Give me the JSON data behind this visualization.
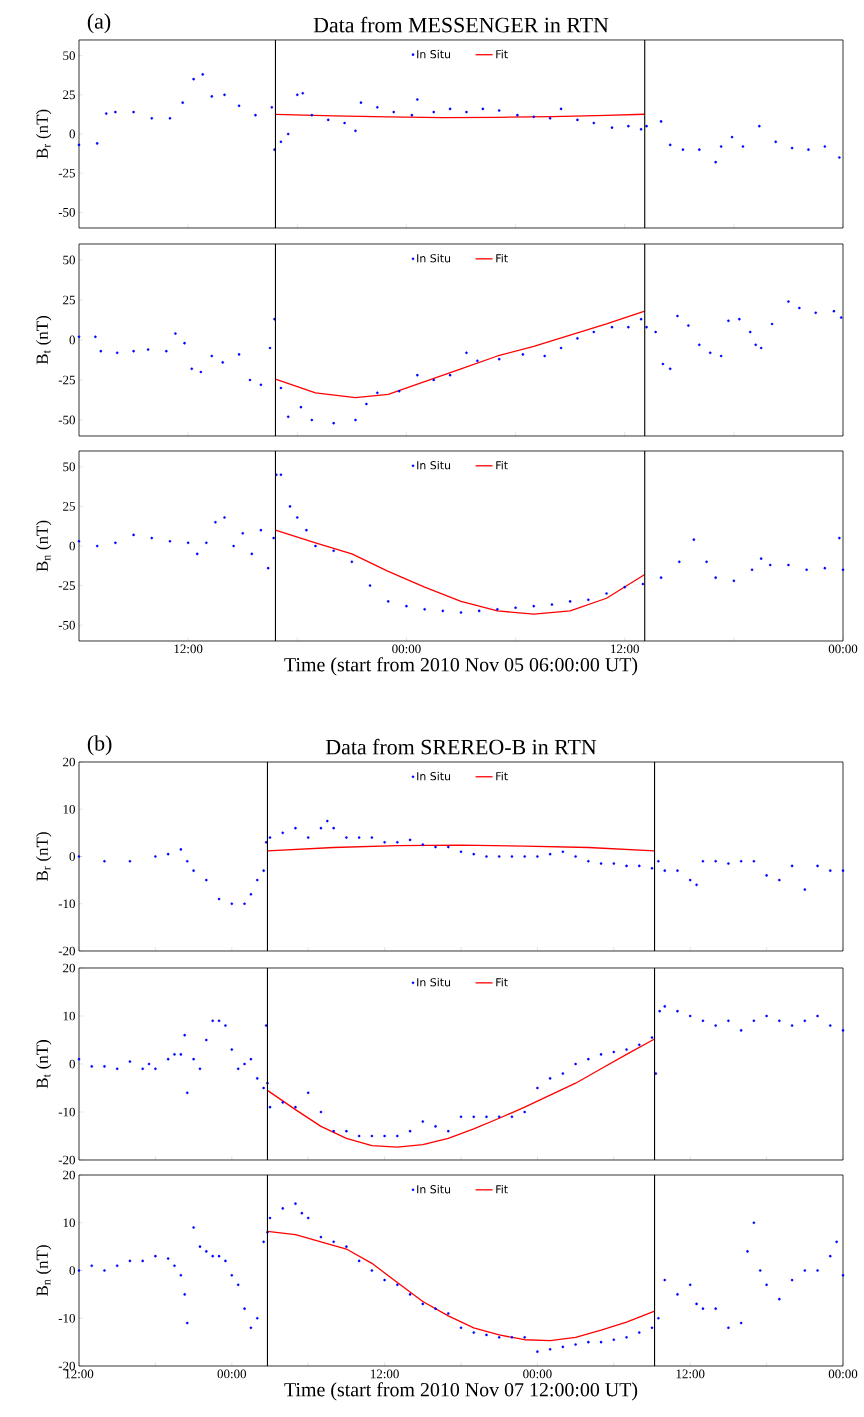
{
  "chart_data": [
    {
      "type": "scatter",
      "title": "Data from MESSENGER in RTN",
      "annotations": [
        "(a)"
      ],
      "ylabel": "B$_{r}$  (nT)",
      "xlim": [
        "2010-11-05T06:00",
        "2010-11-07T00:00"
      ],
      "ylim": [
        -60,
        60
      ],
      "yticks": [
        -50,
        -25,
        0,
        25,
        50
      ],
      "xticks": [
        {
          "value": "2010-11-05T12:00",
          "label": null
        },
        {
          "value": "2010-11-05T18:00",
          "label": null
        },
        {
          "value": "2010-11-06T00:00",
          "label": null
        },
        {
          "value": "2010-11-06T06:00",
          "label": null
        },
        {
          "value": "2010-11-06T12:00",
          "label": null
        },
        {
          "value": "2010-11-06T18:00",
          "label": null
        },
        {
          "value": "2010-11-07T00:00",
          "label": null
        }
      ],
      "tick_labels": "y",
      "legend": "top",
      "ref_lines": [
        {
          "axis": "x",
          "value": "2010-11-05T16:48",
          "color": "#000000"
        },
        {
          "axis": "x",
          "value": "2010-11-06T13:06",
          "color": "#000000"
        }
      ],
      "series": [
        {
          "name": "In Situ",
          "marker": "circle",
          "color": "#0000ff",
          "x": [
            "2010-11-05T06:00",
            "2010-11-05T07:00",
            "2010-11-05T07:30",
            "2010-11-05T08:00",
            "2010-11-05T09:00",
            "2010-11-05T10:00",
            "2010-11-05T11:00",
            "2010-11-05T11:42",
            "2010-11-05T12:18",
            "2010-11-05T12:48",
            "2010-11-05T13:18",
            "2010-11-05T14:00",
            "2010-11-05T14:48",
            "2010-11-05T15:42",
            "2010-11-05T16:36",
            "2010-11-05T16:45",
            "2010-11-05T17:06",
            "2010-11-05T17:30",
            "2010-11-05T18:00",
            "2010-11-05T18:18",
            "2010-11-05T18:48",
            "2010-11-05T19:42",
            "2010-11-05T20:36",
            "2010-11-05T21:12",
            "2010-11-05T21:30",
            "2010-11-05T22:24",
            "2010-11-05T23:18",
            "2010-11-06T00:18",
            "2010-11-06T00:36",
            "2010-11-06T01:30",
            "2010-11-06T02:24",
            "2010-11-06T03:18",
            "2010-11-06T04:12",
            "2010-11-06T05:06",
            "2010-11-06T06:06",
            "2010-11-06T07:00",
            "2010-11-06T07:54",
            "2010-11-06T08:30",
            "2010-11-06T09:24",
            "2010-11-06T10:18",
            "2010-11-06T11:18",
            "2010-11-06T12:12",
            "2010-11-06T12:54",
            "2010-11-06T13:12",
            "2010-11-06T14:00",
            "2010-11-06T14:30",
            "2010-11-06T15:12",
            "2010-11-06T16:06",
            "2010-11-06T17:00",
            "2010-11-06T17:18",
            "2010-11-06T17:54",
            "2010-11-06T18:30",
            "2010-11-06T19:24",
            "2010-11-06T20:18",
            "2010-11-06T21:12",
            "2010-11-06T22:06",
            "2010-11-06T23:00",
            "2010-11-06T23:48"
          ],
          "values": [
            -7,
            -6,
            13,
            14,
            14,
            10,
            10,
            20,
            35,
            38,
            24,
            25,
            18,
            12,
            17,
            -10,
            -5,
            0,
            25,
            26,
            12,
            9,
            7,
            2,
            20,
            17,
            14,
            12,
            22,
            14,
            16,
            14,
            16,
            15,
            12,
            11,
            10,
            16,
            9,
            7,
            4,
            5,
            3,
            5,
            8,
            -7,
            -10,
            -10,
            -18,
            -8,
            -2,
            -8,
            5,
            -5,
            -9,
            -10,
            -8,
            -15
          ]
        },
        {
          "name": "Fit",
          "type": "line",
          "marker": "none",
          "color": "#ff0000",
          "x": [
            "2010-11-05T16:48",
            "2010-11-05T20:00",
            "2010-11-05T23:00",
            "2010-11-06T02:00",
            "2010-11-06T05:00",
            "2010-11-06T08:00",
            "2010-11-06T11:00",
            "2010-11-06T13:06"
          ],
          "values": [
            12.5,
            11.6,
            10.9,
            10.5,
            10.6,
            11.1,
            11.9,
            12.6
          ]
        }
      ]
    },
    {
      "type": "scatter",
      "ylabel": "B$_{t}$  (nT)",
      "xlim": [
        "2010-11-05T06:00",
        "2010-11-07T00:00"
      ],
      "ylim": [
        -60,
        60
      ],
      "yticks": [
        -50,
        -25,
        0,
        25,
        50
      ],
      "xticks": [
        {
          "value": "2010-11-05T12:00",
          "label": null
        },
        {
          "value": "2010-11-05T18:00",
          "label": null
        },
        {
          "value": "2010-11-06T00:00",
          "label": null
        },
        {
          "value": "2010-11-06T06:00",
          "label": null
        },
        {
          "value": "2010-11-06T12:00",
          "label": null
        },
        {
          "value": "2010-11-06T18:00",
          "label": null
        },
        {
          "value": "2010-11-07T00:00",
          "label": null
        }
      ],
      "tick_labels": "y",
      "legend": "top",
      "ref_lines": [
        {
          "axis": "x",
          "value": "2010-11-05T16:48",
          "color": "#000000"
        },
        {
          "axis": "x",
          "value": "2010-11-06T13:06",
          "color": "#000000"
        }
      ],
      "series": [
        {
          "name": "In Situ",
          "marker": "circle",
          "color": "#0000ff",
          "x": [
            "2010-11-05T06:00",
            "2010-11-05T06:54",
            "2010-11-05T07:12",
            "2010-11-05T08:06",
            "2010-11-05T09:00",
            "2010-11-05T09:48",
            "2010-11-05T10:48",
            "2010-11-05T11:18",
            "2010-11-05T11:48",
            "2010-11-05T12:12",
            "2010-11-05T12:42",
            "2010-11-05T13:18",
            "2010-11-05T13:54",
            "2010-11-05T14:48",
            "2010-11-05T15:24",
            "2010-11-05T16:00",
            "2010-11-05T16:30",
            "2010-11-05T16:45",
            "2010-11-05T17:06",
            "2010-11-05T17:30",
            "2010-11-05T18:12",
            "2010-11-05T18:48",
            "2010-11-05T20:00",
            "2010-11-05T21:12",
            "2010-11-05T21:48",
            "2010-11-05T22:24",
            "2010-11-05T23:36",
            "2010-11-06T00:36",
            "2010-11-06T01:30",
            "2010-11-06T02:24",
            "2010-11-06T03:18",
            "2010-11-06T03:54",
            "2010-11-06T05:06",
            "2010-11-06T06:24",
            "2010-11-06T07:36",
            "2010-11-06T08:30",
            "2010-11-06T09:24",
            "2010-11-06T10:18",
            "2010-11-06T11:18",
            "2010-11-06T12:12",
            "2010-11-06T12:54",
            "2010-11-06T13:12",
            "2010-11-06T13:42",
            "2010-11-06T14:06",
            "2010-11-06T14:30",
            "2010-11-06T14:54",
            "2010-11-06T15:30",
            "2010-11-06T16:06",
            "2010-11-06T16:42",
            "2010-11-06T17:18",
            "2010-11-06T17:42",
            "2010-11-06T18:18",
            "2010-11-06T18:54",
            "2010-11-06T19:12",
            "2010-11-06T19:30",
            "2010-11-06T20:06",
            "2010-11-06T21:00",
            "2010-11-06T21:36",
            "2010-11-06T22:30",
            "2010-11-06T23:30",
            "2010-11-06T23:54"
          ],
          "values": [
            2,
            2,
            -7,
            -8,
            -7,
            -6,
            -7,
            4,
            -2,
            -18,
            -20,
            -10,
            -14,
            -9,
            -25,
            -28,
            -5,
            13,
            -30,
            -48,
            -42,
            -50,
            -52,
            -50,
            -40,
            -33,
            -32,
            -22,
            -25,
            -22,
            -8,
            -13,
            -12,
            -9,
            -10,
            -5,
            1,
            5,
            8,
            8,
            13,
            8,
            5,
            -15,
            -18,
            15,
            9,
            -3,
            -8,
            -10,
            12,
            13,
            5,
            -3,
            -5,
            10,
            24,
            20,
            17,
            18,
            14
          ]
        },
        {
          "name": "Fit",
          "type": "line",
          "marker": "none",
          "color": "#ff0000",
          "x": [
            "2010-11-05T16:48",
            "2010-11-05T19:00",
            "2010-11-05T21:12",
            "2010-11-05T23:00",
            "2010-11-06T01:00",
            "2010-11-06T03:00",
            "2010-11-06T05:00",
            "2010-11-06T07:00",
            "2010-11-06T09:00",
            "2010-11-06T11:00",
            "2010-11-06T13:06"
          ],
          "values": [
            -24.5,
            -33,
            -36,
            -34,
            -26,
            -18,
            -10,
            -4,
            3,
            10,
            18
          ]
        }
      ]
    },
    {
      "type": "scatter",
      "ylabel": "B$_{n}$  (nT)",
      "xlabel": "Time (start from 2010 Nov 05 06:00:00 UT)",
      "xlim": [
        "2010-11-05T06:00",
        "2010-11-07T00:00"
      ],
      "ylim": [
        -60,
        60
      ],
      "yticks": [
        -50,
        -25,
        0,
        25,
        50
      ],
      "xticks": [
        {
          "value": "2010-11-05T12:00",
          "label": "12:00"
        },
        {
          "value": "2010-11-05T18:00",
          "label": null
        },
        {
          "value": "2010-11-06T00:00",
          "label": "00:00"
        },
        {
          "value": "2010-11-06T06:00",
          "label": null
        },
        {
          "value": "2010-11-06T12:00",
          "label": "12:00"
        },
        {
          "value": "2010-11-06T18:00",
          "label": null
        },
        {
          "value": "2010-11-07T00:00",
          "label": "00:00"
        }
      ],
      "legend": "top",
      "ref_lines": [
        {
          "axis": "x",
          "value": "2010-11-05T16:48",
          "color": "#000000"
        },
        {
          "axis": "x",
          "value": "2010-11-06T13:06",
          "color": "#000000"
        }
      ],
      "series": [
        {
          "name": "In Situ",
          "marker": "circle",
          "color": "#0000ff",
          "x": [
            "2010-11-05T06:00",
            "2010-11-05T07:00",
            "2010-11-05T08:00",
            "2010-11-05T09:00",
            "2010-11-05T10:00",
            "2010-11-05T11:00",
            "2010-11-05T12:00",
            "2010-11-05T12:30",
            "2010-11-05T13:00",
            "2010-11-05T13:30",
            "2010-11-05T14:00",
            "2010-11-05T14:30",
            "2010-11-05T15:00",
            "2010-11-05T15:30",
            "2010-11-05T16:00",
            "2010-11-05T16:24",
            "2010-11-05T16:42",
            "2010-11-05T16:51",
            "2010-11-05T17:06",
            "2010-11-05T17:36",
            "2010-11-05T18:00",
            "2010-11-05T18:30",
            "2010-11-05T19:00",
            "2010-11-05T20:00",
            "2010-11-05T21:00",
            "2010-11-05T22:00",
            "2010-11-05T23:00",
            "2010-11-06T00:00",
            "2010-11-06T01:00",
            "2010-11-06T02:00",
            "2010-11-06T03:00",
            "2010-11-06T04:00",
            "2010-11-06T05:00",
            "2010-11-06T06:00",
            "2010-11-06T07:00",
            "2010-11-06T08:00",
            "2010-11-06T09:00",
            "2010-11-06T10:00",
            "2010-11-06T11:00",
            "2010-11-06T12:00",
            "2010-11-06T13:00",
            "2010-11-06T14:00",
            "2010-11-06T15:00",
            "2010-11-06T15:48",
            "2010-11-06T16:30",
            "2010-11-06T17:00",
            "2010-11-06T18:00",
            "2010-11-06T19:00",
            "2010-11-06T19:30",
            "2010-11-06T20:00",
            "2010-11-06T21:00",
            "2010-11-06T22:00",
            "2010-11-06T23:00",
            "2010-11-06T23:48",
            "2010-11-07T00:00"
          ],
          "values": [
            3,
            0,
            2,
            7,
            5,
            3,
            2,
            -5,
            2,
            15,
            18,
            0,
            8,
            -5,
            10,
            -14,
            5,
            45,
            45,
            25,
            18,
            10,
            0,
            -3,
            -10,
            -25,
            -35,
            -38,
            -40,
            -41,
            -42,
            -41,
            -40,
            -39,
            -38,
            -37,
            -35,
            -34,
            -30,
            -26,
            -24,
            -20,
            -10,
            4,
            -10,
            -20,
            -22,
            -15,
            -8,
            -12,
            -12,
            -15,
            -14,
            5,
            -15
          ]
        },
        {
          "name": "Fit",
          "type": "line",
          "marker": "none",
          "color": "#ff0000",
          "x": [
            "2010-11-05T16:48",
            "2010-11-05T19:00",
            "2010-11-05T21:00",
            "2010-11-05T23:00",
            "2010-11-06T01:00",
            "2010-11-06T03:00",
            "2010-11-06T05:00",
            "2010-11-06T07:00",
            "2010-11-06T09:00",
            "2010-11-06T11:00",
            "2010-11-06T13:06"
          ],
          "values": [
            10,
            2,
            -5,
            -16,
            -26,
            -35,
            -41,
            -43,
            -41,
            -33,
            -18
          ]
        }
      ]
    },
    {
      "type": "scatter",
      "title": "Data from SREREO-B in RTN",
      "annotations": [
        "(b)"
      ],
      "ylabel": "B$_{r}$  (nT)",
      "xlim": [
        "2010-11-07T12:00",
        "2010-11-10T00:00"
      ],
      "ylim": [
        -20,
        20
      ],
      "yticks": [
        -20,
        -10,
        0,
        10,
        20
      ],
      "xticks": [
        {
          "value": "2010-11-07T12:00",
          "label": null
        },
        {
          "value": "2010-11-07T18:00",
          "label": null
        },
        {
          "value": "2010-11-08T00:00",
          "label": null
        },
        {
          "value": "2010-11-08T06:00",
          "label": null
        },
        {
          "value": "2010-11-08T12:00",
          "label": null
        },
        {
          "value": "2010-11-08T18:00",
          "label": null
        },
        {
          "value": "2010-11-09T00:00",
          "label": null
        },
        {
          "value": "2010-11-09T06:00",
          "label": null
        },
        {
          "value": "2010-11-09T12:00",
          "label": null
        },
        {
          "value": "2010-11-09T18:00",
          "label": null
        },
        {
          "value": "2010-11-10T00:00",
          "label": null
        }
      ],
      "tick_labels": "y",
      "legend": "top",
      "ref_lines": [
        {
          "axis": "x",
          "value": "2010-11-08T02:48",
          "color": "#000000"
        },
        {
          "axis": "x",
          "value": "2010-11-09T09:12",
          "color": "#000000"
        }
      ],
      "series": [
        {
          "name": "In Situ",
          "marker": "circle",
          "color": "#0000ff",
          "x": [
            "2010-11-07T12:00",
            "2010-11-07T14:00",
            "2010-11-07T16:00",
            "2010-11-07T18:00",
            "2010-11-07T19:00",
            "2010-11-07T20:00",
            "2010-11-07T20:30",
            "2010-11-07T21:00",
            "2010-11-07T22:00",
            "2010-11-07T23:00",
            "2010-11-08T00:00",
            "2010-11-08T01:00",
            "2010-11-08T01:30",
            "2010-11-08T02:00",
            "2010-11-08T02:30",
            "2010-11-08T02:42",
            "2010-11-08T03:00",
            "2010-11-08T04:00",
            "2010-11-08T05:00",
            "2010-11-08T06:00",
            "2010-11-08T07:00",
            "2010-11-08T07:30",
            "2010-11-08T08:00",
            "2010-11-08T09:00",
            "2010-11-08T10:00",
            "2010-11-08T11:00",
            "2010-11-08T12:00",
            "2010-11-08T13:00",
            "2010-11-08T14:00",
            "2010-11-08T15:00",
            "2010-11-08T16:00",
            "2010-11-08T17:00",
            "2010-11-08T18:00",
            "2010-11-08T19:00",
            "2010-11-08T20:00",
            "2010-11-08T21:00",
            "2010-11-08T22:00",
            "2010-11-08T23:00",
            "2010-11-09T00:00",
            "2010-11-09T01:00",
            "2010-11-09T02:00",
            "2010-11-09T03:00",
            "2010-11-09T04:00",
            "2010-11-09T05:00",
            "2010-11-09T06:00",
            "2010-11-09T07:00",
            "2010-11-09T08:00",
            "2010-11-09T09:00",
            "2010-11-09T09:30",
            "2010-11-09T10:00",
            "2010-11-09T11:00",
            "2010-11-09T12:00",
            "2010-11-09T12:30",
            "2010-11-09T13:00",
            "2010-11-09T14:00",
            "2010-11-09T15:00",
            "2010-11-09T16:00",
            "2010-11-09T17:00",
            "2010-11-09T18:00",
            "2010-11-09T19:00",
            "2010-11-09T20:00",
            "2010-11-09T21:00",
            "2010-11-09T22:00",
            "2010-11-09T23:00",
            "2010-11-10T00:00"
          ],
          "values": [
            0,
            -1,
            -1,
            0,
            0.5,
            1.5,
            -1,
            -3,
            -5,
            -9,
            -10,
            -10,
            -8,
            -5,
            -3,
            3,
            4,
            5,
            6,
            4,
            6,
            7.5,
            6,
            4,
            4,
            4,
            3,
            3,
            3.5,
            2.5,
            2,
            2,
            1,
            0.5,
            0,
            0,
            0,
            0,
            0,
            0.5,
            1,
            0,
            -1,
            -1.5,
            -1.5,
            -2,
            -2,
            -2.5,
            -1,
            -3,
            -3,
            -5,
            -6,
            -1,
            -1,
            -1.5,
            -1,
            -1,
            -4,
            -5,
            -2,
            -7,
            -2,
            -3,
            -3
          ]
        },
        {
          "name": "Fit",
          "type": "line",
          "marker": "none",
          "color": "#ff0000",
          "x": [
            "2010-11-08T02:48",
            "2010-11-08T08:00",
            "2010-11-08T13:00",
            "2010-11-08T18:00",
            "2010-11-08T23:00",
            "2010-11-09T04:00",
            "2010-11-09T09:12"
          ],
          "values": [
            1.2,
            1.9,
            2.3,
            2.4,
            2.2,
            1.9,
            1.2
          ]
        }
      ]
    },
    {
      "type": "scatter",
      "ylabel": "B$_{t}$  (nT)",
      "xlim": [
        "2010-11-07T12:00",
        "2010-11-10T00:00"
      ],
      "ylim": [
        -20,
        20
      ],
      "yticks": [
        -20,
        -10,
        0,
        10,
        20
      ],
      "xticks": [
        {
          "value": "2010-11-07T12:00",
          "label": null
        },
        {
          "value": "2010-11-07T18:00",
          "label": null
        },
        {
          "value": "2010-11-08T00:00",
          "label": null
        },
        {
          "value": "2010-11-08T06:00",
          "label": null
        },
        {
          "value": "2010-11-08T12:00",
          "label": null
        },
        {
          "value": "2010-11-08T18:00",
          "label": null
        },
        {
          "value": "2010-11-09T00:00",
          "label": null
        },
        {
          "value": "2010-11-09T06:00",
          "label": null
        },
        {
          "value": "2010-11-09T12:00",
          "label": null
        },
        {
          "value": "2010-11-09T18:00",
          "label": null
        },
        {
          "value": "2010-11-10T00:00",
          "label": null
        }
      ],
      "tick_labels": "y",
      "legend": "top",
      "ref_lines": [
        {
          "axis": "x",
          "value": "2010-11-08T02:48",
          "color": "#000000"
        },
        {
          "axis": "x",
          "value": "2010-11-09T09:12",
          "color": "#000000"
        }
      ],
      "series": [
        {
          "name": "In Situ",
          "marker": "circle",
          "color": "#0000ff",
          "x": [
            "2010-11-07T12:00",
            "2010-11-07T13:00",
            "2010-11-07T14:00",
            "2010-11-07T15:00",
            "2010-11-07T16:00",
            "2010-11-07T17:00",
            "2010-11-07T17:30",
            "2010-11-07T18:00",
            "2010-11-07T19:00",
            "2010-11-07T19:30",
            "2010-11-07T20:00",
            "2010-11-07T20:18",
            "2010-11-07T20:30",
            "2010-11-07T21:00",
            "2010-11-07T21:30",
            "2010-11-07T22:00",
            "2010-11-07T22:30",
            "2010-11-07T23:00",
            "2010-11-07T23:30",
            "2010-11-08T00:00",
            "2010-11-08T00:30",
            "2010-11-08T01:00",
            "2010-11-08T01:30",
            "2010-11-08T02:00",
            "2010-11-08T02:30",
            "2010-11-08T02:42",
            "2010-11-08T02:48",
            "2010-11-08T03:00",
            "2010-11-08T04:00",
            "2010-11-08T05:00",
            "2010-11-08T06:00",
            "2010-11-08T07:00",
            "2010-11-08T08:00",
            "2010-11-08T09:00",
            "2010-11-08T10:00",
            "2010-11-08T11:00",
            "2010-11-08T12:00",
            "2010-11-08T13:00",
            "2010-11-08T14:00",
            "2010-11-08T15:00",
            "2010-11-08T16:00",
            "2010-11-08T17:00",
            "2010-11-08T18:00",
            "2010-11-08T19:00",
            "2010-11-08T20:00",
            "2010-11-08T21:00",
            "2010-11-08T22:00",
            "2010-11-08T23:00",
            "2010-11-09T00:00",
            "2010-11-09T01:00",
            "2010-11-09T02:00",
            "2010-11-09T03:00",
            "2010-11-09T04:00",
            "2010-11-09T05:00",
            "2010-11-09T06:00",
            "2010-11-09T07:00",
            "2010-11-09T08:00",
            "2010-11-09T09:00",
            "2010-11-09T09:18",
            "2010-11-09T09:36",
            "2010-11-09T10:00",
            "2010-11-09T11:00",
            "2010-11-09T12:00",
            "2010-11-09T13:00",
            "2010-11-09T14:00",
            "2010-11-09T15:00",
            "2010-11-09T16:00",
            "2010-11-09T17:00",
            "2010-11-09T18:00",
            "2010-11-09T19:00",
            "2010-11-09T20:00",
            "2010-11-09T21:00",
            "2010-11-09T22:00",
            "2010-11-09T23:00",
            "2010-11-10T00:00"
          ],
          "values": [
            1,
            -0.5,
            -0.5,
            -1,
            0.5,
            -1,
            0,
            -1,
            1,
            2,
            2,
            6,
            -6,
            1,
            -1,
            5,
            9,
            9,
            8,
            3,
            -1,
            0,
            1,
            -3,
            -5,
            8,
            -4,
            -9,
            -8,
            -9,
            -6,
            -10,
            -14,
            -14,
            -15,
            -15,
            -15,
            -15,
            -14,
            -12,
            -13,
            -14,
            -11,
            -11,
            -11,
            -11,
            -11,
            -10,
            -5,
            -3,
            -2,
            0,
            1,
            2,
            2.5,
            3,
            4,
            5.5,
            -2,
            11,
            12,
            11,
            10,
            9,
            8,
            9,
            7,
            9,
            10,
            9,
            8,
            9,
            10,
            8,
            7
          ]
        },
        {
          "name": "Fit",
          "type": "line",
          "marker": "none",
          "color": "#ff0000",
          "x": [
            "2010-11-08T02:48",
            "2010-11-08T05:00",
            "2010-11-08T07:00",
            "2010-11-08T09:00",
            "2010-11-08T11:00",
            "2010-11-08T13:00",
            "2010-11-08T15:00",
            "2010-11-08T17:00",
            "2010-11-08T19:00",
            "2010-11-08T21:00",
            "2010-11-08T23:00",
            "2010-11-09T01:00",
            "2010-11-09T03:00",
            "2010-11-09T05:00",
            "2010-11-09T07:00",
            "2010-11-09T09:12"
          ],
          "values": [
            -5.5,
            -9.5,
            -13,
            -15.5,
            -17,
            -17.3,
            -16.8,
            -15.5,
            -13.5,
            -11.3,
            -9,
            -6.5,
            -4,
            -1,
            2,
            5.2
          ]
        }
      ]
    },
    {
      "type": "scatter",
      "ylabel": "B$_{n}$  (nT)",
      "xlabel": "Time (start from 2010 Nov 07 12:00:00 UT)",
      "xlim": [
        "2010-11-07T12:00",
        "2010-11-10T00:00"
      ],
      "ylim": [
        -20,
        20
      ],
      "yticks": [
        -20,
        -10,
        0,
        10,
        20
      ],
      "xticks": [
        {
          "value": "2010-11-07T12:00",
          "label": "12:00"
        },
        {
          "value": "2010-11-07T18:00",
          "label": null
        },
        {
          "value": "2010-11-08T00:00",
          "label": "00:00"
        },
        {
          "value": "2010-11-08T06:00",
          "label": null
        },
        {
          "value": "2010-11-08T12:00",
          "label": "12:00"
        },
        {
          "value": "2010-11-08T18:00",
          "label": null
        },
        {
          "value": "2010-11-09T00:00",
          "label": "00:00"
        },
        {
          "value": "2010-11-09T06:00",
          "label": null
        },
        {
          "value": "2010-11-09T12:00",
          "label": "12:00"
        },
        {
          "value": "2010-11-09T18:00",
          "label": null
        },
        {
          "value": "2010-11-10T00:00",
          "label": "00:00"
        }
      ],
      "legend": "top",
      "ref_lines": [
        {
          "axis": "x",
          "value": "2010-11-08T02:48",
          "color": "#000000"
        },
        {
          "axis": "x",
          "value": "2010-11-09T09:12",
          "color": "#000000"
        }
      ],
      "series": [
        {
          "name": "In Situ",
          "marker": "circle",
          "color": "#0000ff",
          "x": [
            "2010-11-07T12:00",
            "2010-11-07T13:00",
            "2010-11-07T14:00",
            "2010-11-07T15:00",
            "2010-11-07T16:00",
            "2010-11-07T17:00",
            "2010-11-07T18:00",
            "2010-11-07T19:00",
            "2010-11-07T19:30",
            "2010-11-07T20:00",
            "2010-11-07T20:18",
            "2010-11-07T20:30",
            "2010-11-07T21:00",
            "2010-11-07T21:30",
            "2010-11-07T22:00",
            "2010-11-07T22:30",
            "2010-11-07T23:00",
            "2010-11-07T23:30",
            "2010-11-08T00:00",
            "2010-11-08T00:30",
            "2010-11-08T01:00",
            "2010-11-08T01:30",
            "2010-11-08T02:00",
            "2010-11-08T02:30",
            "2010-11-08T02:48",
            "2010-11-08T03:00",
            "2010-11-08T04:00",
            "2010-11-08T05:00",
            "2010-11-08T05:30",
            "2010-11-08T06:00",
            "2010-11-08T07:00",
            "2010-11-08T08:00",
            "2010-11-08T09:00",
            "2010-11-08T10:00",
            "2010-11-08T11:00",
            "2010-11-08T12:00",
            "2010-11-08T13:00",
            "2010-11-08T14:00",
            "2010-11-08T15:00",
            "2010-11-08T16:00",
            "2010-11-08T17:00",
            "2010-11-08T18:00",
            "2010-11-08T19:00",
            "2010-11-08T20:00",
            "2010-11-08T21:00",
            "2010-11-08T22:00",
            "2010-11-08T23:00",
            "2010-11-09T00:00",
            "2010-11-09T01:00",
            "2010-11-09T02:00",
            "2010-11-09T03:00",
            "2010-11-09T04:00",
            "2010-11-09T05:00",
            "2010-11-09T06:00",
            "2010-11-09T07:00",
            "2010-11-09T08:00",
            "2010-11-09T09:00",
            "2010-11-09T09:30",
            "2010-11-09T10:00",
            "2010-11-09T11:00",
            "2010-11-09T12:00",
            "2010-11-09T12:30",
            "2010-11-09T13:00",
            "2010-11-09T14:00",
            "2010-11-09T15:00",
            "2010-11-09T16:00",
            "2010-11-09T16:30",
            "2010-11-09T17:00",
            "2010-11-09T17:30",
            "2010-11-09T18:00",
            "2010-11-09T19:00",
            "2010-11-09T20:00",
            "2010-11-09T21:00",
            "2010-11-09T22:00",
            "2010-11-09T23:00",
            "2010-11-09T23:30",
            "2010-11-10T00:00"
          ],
          "values": [
            0,
            1,
            0,
            1,
            2,
            2,
            3,
            2.5,
            1,
            -1,
            -5,
            -11,
            9,
            5,
            4,
            3,
            3,
            2,
            -1,
            -3,
            -8,
            -12,
            -10,
            6,
            8,
            11,
            13,
            14,
            12,
            11,
            7,
            6,
            5,
            2,
            0,
            -2,
            -3,
            -5,
            -7,
            -8,
            -9,
            -12,
            -13,
            -13.5,
            -14,
            -14,
            -14,
            -17,
            -16.5,
            -16,
            -15.5,
            -15,
            -15,
            -14.5,
            -14,
            -13,
            -12,
            -10,
            -2,
            -5,
            -3,
            -7,
            -8,
            -8,
            -12,
            -11,
            4,
            10,
            0,
            -3,
            -6,
            -2,
            0,
            0,
            3,
            6,
            -1
          ]
        },
        {
          "name": "Fit",
          "type": "line",
          "marker": "none",
          "color": "#ff0000",
          "x": [
            "2010-11-08T02:48",
            "2010-11-08T05:00",
            "2010-11-08T07:00",
            "2010-11-08T09:00",
            "2010-11-08T11:00",
            "2010-11-08T13:00",
            "2010-11-08T15:00",
            "2010-11-08T17:00",
            "2010-11-08T19:00",
            "2010-11-08T21:00",
            "2010-11-08T23:00",
            "2010-11-09T01:00",
            "2010-11-09T03:00",
            "2010-11-09T05:00",
            "2010-11-09T07:00",
            "2010-11-09T09:12"
          ],
          "values": [
            8.2,
            7.5,
            6,
            4.5,
            1.5,
            -2.5,
            -6.5,
            -9.5,
            -12,
            -13.5,
            -14.5,
            -14.7,
            -14,
            -12.5,
            -10.8,
            -8.5
          ]
        }
      ]
    }
  ]
}
